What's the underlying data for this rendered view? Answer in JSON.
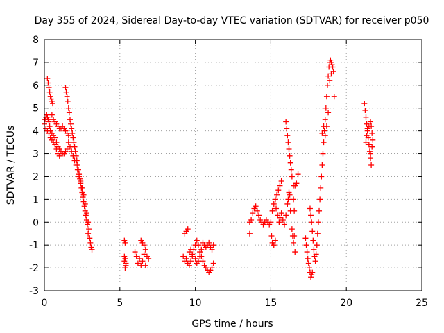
{
  "chart_data": {
    "type": "scatter",
    "title": "Day 355 of 2024, Sidereal Day-to-day VTEC variation (SDTVAR) for receiver p050",
    "xlabel": "GPS time / hours",
    "ylabel": "SDTVAR / TECUs",
    "xlim": [
      0,
      25
    ],
    "ylim": [
      -3,
      8
    ],
    "xticks": [
      0,
      5,
      10,
      15,
      20,
      25
    ],
    "yticks": [
      -3,
      -2,
      -1,
      0,
      1,
      2,
      3,
      4,
      5,
      6,
      7,
      8
    ],
    "grid": true,
    "marker": "+",
    "marker_color": "#ff0000",
    "series": [
      {
        "name": "SDTVAR",
        "points": [
          [
            0.0,
            4.3
          ],
          [
            0.05,
            4.5
          ],
          [
            0.1,
            4.6
          ],
          [
            0.15,
            4.7
          ],
          [
            0.2,
            4.6
          ],
          [
            0.25,
            4.5
          ],
          [
            0.3,
            4.4
          ],
          [
            0.35,
            4.2
          ],
          [
            0.4,
            4.0
          ],
          [
            0.5,
            3.9
          ],
          [
            0.6,
            3.8
          ],
          [
            0.7,
            3.7
          ],
          [
            0.8,
            3.5
          ],
          [
            0.9,
            3.3
          ],
          [
            1.0,
            3.2
          ],
          [
            1.1,
            3.1
          ],
          [
            1.2,
            3.0
          ],
          [
            1.3,
            3.0
          ],
          [
            1.4,
            3.1
          ],
          [
            1.5,
            3.2
          ],
          [
            0.1,
            4.1
          ],
          [
            0.2,
            4.0
          ],
          [
            0.3,
            3.9
          ],
          [
            0.4,
            3.7
          ],
          [
            0.5,
            3.6
          ],
          [
            0.6,
            3.5
          ],
          [
            0.7,
            3.4
          ],
          [
            0.8,
            3.2
          ],
          [
            0.9,
            3.0
          ],
          [
            1.0,
            2.9
          ],
          [
            0.2,
            6.3
          ],
          [
            0.25,
            6.1
          ],
          [
            0.3,
            5.9
          ],
          [
            0.35,
            5.7
          ],
          [
            0.4,
            5.5
          ],
          [
            0.45,
            5.4
          ],
          [
            0.5,
            5.3
          ],
          [
            0.55,
            5.2
          ],
          [
            0.5,
            4.7
          ],
          [
            0.6,
            4.5
          ],
          [
            0.7,
            4.4
          ],
          [
            0.8,
            4.3
          ],
          [
            0.9,
            4.2
          ],
          [
            1.0,
            4.1
          ],
          [
            1.1,
            4.1
          ],
          [
            1.2,
            4.2
          ],
          [
            1.3,
            4.1
          ],
          [
            1.4,
            4.0
          ],
          [
            1.5,
            3.9
          ],
          [
            1.6,
            3.8
          ],
          [
            1.4,
            5.9
          ],
          [
            1.45,
            5.7
          ],
          [
            1.5,
            5.5
          ],
          [
            1.55,
            5.3
          ],
          [
            1.6,
            5.0
          ],
          [
            1.65,
            4.8
          ],
          [
            1.7,
            4.5
          ],
          [
            1.75,
            4.3
          ],
          [
            1.8,
            4.1
          ],
          [
            1.85,
            3.9
          ],
          [
            1.9,
            3.7
          ],
          [
            1.95,
            3.5
          ],
          [
            2.0,
            3.3
          ],
          [
            2.05,
            3.1
          ],
          [
            2.1,
            2.9
          ],
          [
            2.15,
            2.7
          ],
          [
            2.2,
            2.5
          ],
          [
            2.25,
            2.3
          ],
          [
            2.3,
            2.1
          ],
          [
            2.35,
            1.9
          ],
          [
            2.4,
            1.7
          ],
          [
            2.45,
            1.5
          ],
          [
            2.5,
            1.3
          ],
          [
            2.55,
            1.1
          ],
          [
            2.6,
            0.9
          ],
          [
            2.65,
            0.7
          ],
          [
            2.7,
            0.5
          ],
          [
            2.75,
            0.3
          ],
          [
            2.8,
            0.1
          ],
          [
            2.85,
            -0.1
          ],
          [
            1.6,
            3.5
          ],
          [
            1.7,
            3.3
          ],
          [
            1.8,
            3.1
          ],
          [
            1.9,
            2.9
          ],
          [
            2.0,
            2.7
          ],
          [
            2.1,
            2.5
          ],
          [
            2.2,
            2.3
          ],
          [
            2.3,
            2.0
          ],
          [
            2.4,
            1.8
          ],
          [
            2.5,
            1.5
          ],
          [
            2.6,
            1.2
          ],
          [
            2.7,
            0.8
          ],
          [
            2.8,
            0.4
          ],
          [
            2.9,
            0.0
          ],
          [
            2.9,
            -0.5
          ],
          [
            3.0,
            -0.7
          ],
          [
            3.05,
            -0.9
          ],
          [
            3.1,
            -1.1
          ],
          [
            3.15,
            -1.2
          ],
          [
            2.95,
            -0.3
          ],
          [
            5.3,
            -0.8
          ],
          [
            5.35,
            -0.9
          ],
          [
            5.3,
            -1.5
          ],
          [
            5.35,
            -1.6
          ],
          [
            5.4,
            -1.8
          ],
          [
            5.35,
            -2.0
          ],
          [
            5.4,
            -1.9
          ],
          [
            5.3,
            -1.7
          ],
          [
            6.0,
            -1.3
          ],
          [
            6.1,
            -1.5
          ],
          [
            6.2,
            -1.8
          ],
          [
            6.3,
            -1.6
          ],
          [
            6.4,
            -0.8
          ],
          [
            6.5,
            -0.9
          ],
          [
            6.6,
            -1.0
          ],
          [
            6.7,
            -1.2
          ],
          [
            6.8,
            -1.5
          ],
          [
            6.9,
            -1.6
          ],
          [
            6.7,
            -1.9
          ],
          [
            6.5,
            -1.7
          ],
          [
            6.6,
            -1.4
          ],
          [
            6.4,
            -1.9
          ],
          [
            9.3,
            -0.5
          ],
          [
            9.4,
            -0.4
          ],
          [
            9.5,
            -0.3
          ],
          [
            9.2,
            -1.5
          ],
          [
            9.3,
            -1.7
          ],
          [
            9.4,
            -1.6
          ],
          [
            9.5,
            -1.8
          ],
          [
            9.6,
            -1.9
          ],
          [
            9.7,
            -1.7
          ],
          [
            9.8,
            -1.5
          ],
          [
            9.9,
            -1.2
          ],
          [
            10.0,
            -1.0
          ],
          [
            10.1,
            -0.8
          ],
          [
            10.2,
            -1.0
          ],
          [
            10.3,
            -1.3
          ],
          [
            10.4,
            -1.5
          ],
          [
            10.5,
            -1.7
          ],
          [
            10.6,
            -1.9
          ],
          [
            10.7,
            -2.0
          ],
          [
            10.8,
            -2.1
          ],
          [
            10.9,
            -2.2
          ],
          [
            11.0,
            -2.1
          ],
          [
            11.1,
            -2.0
          ],
          [
            11.2,
            -1.8
          ],
          [
            10.5,
            -0.9
          ],
          [
            10.6,
            -1.0
          ],
          [
            10.7,
            -1.1
          ],
          [
            10.8,
            -1.0
          ],
          [
            10.9,
            -0.9
          ],
          [
            11.0,
            -1.1
          ],
          [
            11.1,
            -1.2
          ],
          [
            11.2,
            -1.0
          ],
          [
            10.0,
            -1.6
          ],
          [
            10.1,
            -1.8
          ],
          [
            10.2,
            -1.7
          ],
          [
            10.3,
            -1.5
          ],
          [
            9.6,
            -1.3
          ],
          [
            9.7,
            -1.2
          ],
          [
            9.8,
            -1.4
          ],
          [
            10.4,
            -1.2
          ],
          [
            13.6,
            0.0
          ],
          [
            13.6,
            -0.5
          ],
          [
            13.7,
            0.1
          ],
          [
            13.8,
            0.4
          ],
          [
            13.9,
            0.6
          ],
          [
            14.0,
            0.7
          ],
          [
            14.1,
            0.5
          ],
          [
            14.2,
            0.3
          ],
          [
            14.3,
            0.1
          ],
          [
            14.4,
            0.0
          ],
          [
            14.5,
            -0.1
          ],
          [
            14.6,
            0.0
          ],
          [
            14.7,
            0.1
          ],
          [
            14.8,
            0.0
          ],
          [
            14.9,
            -0.1
          ],
          [
            15.0,
            0.0
          ],
          [
            15.05,
            -0.6
          ],
          [
            15.1,
            -0.9
          ],
          [
            15.2,
            -1.0
          ],
          [
            15.3,
            -0.8
          ],
          [
            15.1,
            0.5
          ],
          [
            15.2,
            0.8
          ],
          [
            15.3,
            1.0
          ],
          [
            15.4,
            1.2
          ],
          [
            15.5,
            1.4
          ],
          [
            15.6,
            1.6
          ],
          [
            15.7,
            1.8
          ],
          [
            15.35,
            0.6
          ],
          [
            15.45,
            0.3
          ],
          [
            15.55,
            0.0
          ],
          [
            15.6,
            0.2
          ],
          [
            15.7,
            0.4
          ],
          [
            15.8,
            0.1
          ],
          [
            15.9,
            -0.1
          ],
          [
            16.0,
            0.3
          ],
          [
            16.1,
            0.8
          ],
          [
            16.15,
            1.0
          ],
          [
            16.2,
            1.3
          ],
          [
            16.25,
            1.2
          ],
          [
            16.3,
            0.5
          ],
          [
            16.0,
            4.4
          ],
          [
            16.05,
            4.1
          ],
          [
            16.1,
            3.8
          ],
          [
            16.15,
            3.5
          ],
          [
            16.2,
            3.2
          ],
          [
            16.25,
            2.9
          ],
          [
            16.3,
            2.6
          ],
          [
            16.35,
            2.3
          ],
          [
            16.4,
            2.0
          ],
          [
            16.5,
            1.6
          ],
          [
            16.4,
            -0.3
          ],
          [
            16.45,
            -0.6
          ],
          [
            16.5,
            -0.9
          ],
          [
            16.55,
            -0.6
          ],
          [
            16.6,
            -1.3
          ],
          [
            16.6,
            1.6
          ],
          [
            16.7,
            1.7
          ],
          [
            16.8,
            2.1
          ],
          [
            16.5,
            1.0
          ],
          [
            16.55,
            0.5
          ],
          [
            17.3,
            -0.7
          ],
          [
            17.35,
            -1.0
          ],
          [
            17.4,
            -1.3
          ],
          [
            17.45,
            -1.6
          ],
          [
            17.5,
            -1.8
          ],
          [
            17.55,
            -2.0
          ],
          [
            17.6,
            -2.2
          ],
          [
            17.65,
            -2.4
          ],
          [
            17.7,
            -2.3
          ],
          [
            17.75,
            -2.2
          ],
          [
            17.6,
            0.6
          ],
          [
            17.65,
            0.3
          ],
          [
            17.7,
            0.0
          ],
          [
            17.75,
            -0.4
          ],
          [
            17.8,
            -0.8
          ],
          [
            17.85,
            -1.2
          ],
          [
            17.9,
            -1.5
          ],
          [
            17.95,
            -1.7
          ],
          [
            18.0,
            -1.4
          ],
          [
            18.05,
            -1.0
          ],
          [
            18.1,
            -0.5
          ],
          [
            18.15,
            0.0
          ],
          [
            18.2,
            0.5
          ],
          [
            18.25,
            1.0
          ],
          [
            18.3,
            1.5
          ],
          [
            18.35,
            2.0
          ],
          [
            18.4,
            2.5
          ],
          [
            18.45,
            3.0
          ],
          [
            18.5,
            3.5
          ],
          [
            18.55,
            4.0
          ],
          [
            18.6,
            4.5
          ],
          [
            18.65,
            5.0
          ],
          [
            18.7,
            5.5
          ],
          [
            18.75,
            6.0
          ],
          [
            18.8,
            6.4
          ],
          [
            18.85,
            6.8
          ],
          [
            18.9,
            7.0
          ],
          [
            18.95,
            7.1
          ],
          [
            19.0,
            7.0
          ],
          [
            19.05,
            6.9
          ],
          [
            19.1,
            6.8
          ],
          [
            19.15,
            6.6
          ],
          [
            18.9,
            6.2
          ],
          [
            19.0,
            6.5
          ],
          [
            19.2,
            5.5
          ],
          [
            18.6,
            3.8
          ],
          [
            18.7,
            4.2
          ],
          [
            18.8,
            4.8
          ],
          [
            18.5,
            4.2
          ],
          [
            18.4,
            3.9
          ],
          [
            21.2,
            5.2
          ],
          [
            21.25,
            4.9
          ],
          [
            21.3,
            4.6
          ],
          [
            21.35,
            4.3
          ],
          [
            21.4,
            4.0
          ],
          [
            21.45,
            3.7
          ],
          [
            21.5,
            3.4
          ],
          [
            21.55,
            3.1
          ],
          [
            21.6,
            2.8
          ],
          [
            21.65,
            2.5
          ],
          [
            21.3,
            3.5
          ],
          [
            21.35,
            3.8
          ],
          [
            21.4,
            4.1
          ],
          [
            21.5,
            4.2
          ],
          [
            21.6,
            4.4
          ],
          [
            21.65,
            4.2
          ],
          [
            21.7,
            3.9
          ],
          [
            21.75,
            3.6
          ],
          [
            21.7,
            3.3
          ],
          [
            21.6,
            3.0
          ]
        ]
      }
    ]
  }
}
